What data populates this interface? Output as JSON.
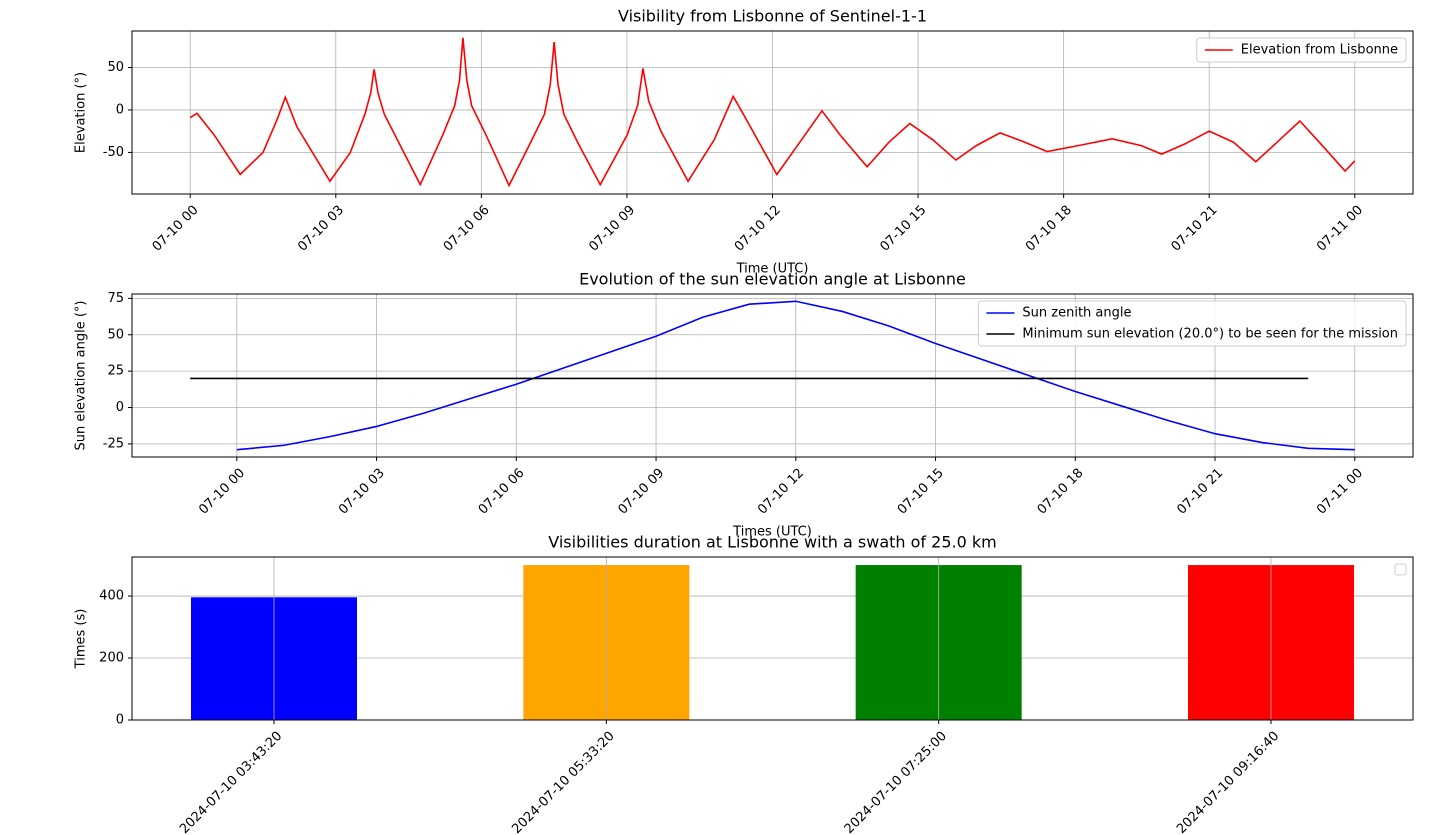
{
  "chart_data": [
    {
      "type": "line",
      "title": "Visibility from Lisbonne of Sentinel-1-1",
      "xlabel": "Time (UTC)",
      "ylabel": "Elevation (°)",
      "xlim": [
        -1.2,
        25.2
      ],
      "ylim": [
        -99,
        93
      ],
      "grid": true,
      "legend": "upper right",
      "xticks": [
        {
          "value": 0,
          "label": "07-10 00"
        },
        {
          "value": 3,
          "label": "07-10 03"
        },
        {
          "value": 6,
          "label": "07-10 06"
        },
        {
          "value": 9,
          "label": "07-10 09"
        },
        {
          "value": 12,
          "label": "07-10 12"
        },
        {
          "value": 15,
          "label": "07-10 15"
        },
        {
          "value": 18,
          "label": "07-10 18"
        },
        {
          "value": 21,
          "label": "07-10 21"
        },
        {
          "value": 24,
          "label": "07-11 00"
        }
      ],
      "yticks": [
        -50,
        0,
        50
      ],
      "series": [
        {
          "name": "Elevation from Lisbonne",
          "color": "#ff0000",
          "x": [
            0,
            0.14,
            0.5,
            1.03,
            1.5,
            1.8,
            1.96,
            2.2,
            2.88,
            3.3,
            3.6,
            3.72,
            3.79,
            3.87,
            4.0,
            4.74,
            5.2,
            5.45,
            5.55,
            5.62,
            5.7,
            5.8,
            6.1,
            6.57,
            7.0,
            7.3,
            7.42,
            7.5,
            7.58,
            7.7,
            8.0,
            8.45,
            9.0,
            9.22,
            9.33,
            9.45,
            9.7,
            10.26,
            10.8,
            11.19,
            11.4,
            12.09,
            12.6,
            13.02,
            13.4,
            13.95,
            14.4,
            14.83,
            15.3,
            15.78,
            16.2,
            16.69,
            17.2,
            17.66,
            18.3,
            19.0,
            19.6,
            20.02,
            20.5,
            21.0,
            21.5,
            21.96,
            22.4,
            22.87,
            23.3,
            23.8,
            24
          ],
          "values": [
            -9,
            -4,
            -30,
            -76,
            -50,
            -10,
            15,
            -20,
            -84,
            -50,
            -5,
            20,
            48,
            20,
            -5,
            -88,
            -30,
            5,
            35,
            85,
            35,
            5,
            -30,
            -89,
            -40,
            -5,
            30,
            80,
            30,
            -5,
            -40,
            -88,
            -30,
            5,
            49,
            10,
            -25,
            -84,
            -35,
            16,
            -5,
            -76,
            -35,
            -1,
            -30,
            -67,
            -38,
            -16,
            -35,
            -59,
            -42,
            -27,
            -38,
            -49,
            -42,
            -34,
            -42,
            -52,
            -40,
            -25,
            -38,
            -61,
            -38,
            -13,
            -40,
            -72,
            -60
          ]
        }
      ]
    },
    {
      "type": "line",
      "title": "Evolution of the sun elevation angle at Lisbonne",
      "xlabel": "Times (UTC)",
      "ylabel": "Sun elevation angle (°)",
      "xlim": [
        -2.25,
        25.25
      ],
      "ylim": [
        -34,
        78
      ],
      "grid": true,
      "legend": "upper right",
      "xticks": [
        {
          "value": 0,
          "label": "07-10 00"
        },
        {
          "value": 3,
          "label": "07-10 03"
        },
        {
          "value": 6,
          "label": "07-10 06"
        },
        {
          "value": 9,
          "label": "07-10 09"
        },
        {
          "value": 12,
          "label": "07-10 12"
        },
        {
          "value": 15,
          "label": "07-10 15"
        },
        {
          "value": 18,
          "label": "07-10 18"
        },
        {
          "value": 21,
          "label": "07-10 21"
        },
        {
          "value": 24,
          "label": "07-11 00"
        }
      ],
      "yticks": [
        -25,
        0,
        25,
        50,
        75
      ],
      "series": [
        {
          "name": "Sun zenith angle",
          "color": "#0000ff",
          "x": [
            0,
            1,
            2,
            3,
            4,
            5,
            6,
            7,
            8,
            9,
            10,
            11,
            12,
            13,
            14,
            15,
            16,
            17,
            18,
            19,
            20,
            21,
            22,
            23,
            24
          ],
          "values": [
            -29,
            -26,
            -20,
            -13,
            -4,
            6,
            16,
            27,
            38,
            49,
            62,
            71,
            73,
            66,
            56,
            44,
            33,
            22,
            11,
            1,
            -9,
            -18,
            -24,
            -28,
            -29
          ]
        },
        {
          "name": "Minimum sun elevation (20.0°) to be seen for the mission",
          "color": "#000000",
          "x": [
            -1,
            23
          ],
          "values": [
            20,
            20
          ]
        }
      ]
    },
    {
      "type": "bar",
      "title": "Visibilities duration at Lisbonne with a swath of 25.0 km",
      "ylabel": "Times (s)",
      "ylim": [
        0,
        526
      ],
      "yticks": [
        0,
        200,
        400
      ],
      "grid": true,
      "categories": [
        "2024-07-10 03:43:20",
        "2024-07-10 05:33:20",
        "2024-07-10 07:25:00",
        "2024-07-10 09:16:40"
      ],
      "values": [
        396,
        500,
        500,
        500
      ],
      "colors": [
        "#0000ff",
        "#ffa500",
        "#008000",
        "#ff0000"
      ]
    }
  ]
}
